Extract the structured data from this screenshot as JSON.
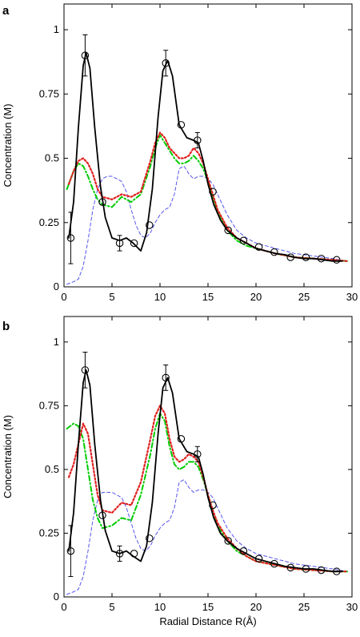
{
  "figure": {
    "xlabel": "Radial Distance R(Å)"
  },
  "chart_data": [
    {
      "type": "line",
      "panel_label": "a",
      "xlabel": "",
      "ylabel": "Concentration (M)",
      "xlim": [
        0,
        30
      ],
      "ylim": [
        0,
        1.1
      ],
      "x_ticks": [
        0,
        5,
        10,
        15,
        20,
        25,
        30
      ],
      "x_tick_labels": [
        "0",
        "5",
        "10",
        "15",
        "20",
        "25",
        "30"
      ],
      "y_ticks": [
        0,
        0.25,
        0.5,
        0.75,
        1
      ],
      "y_tick_labels": [
        "0",
        "0.25",
        "0.5",
        "0.75",
        "1"
      ],
      "grid": false,
      "series": [
        {
          "style": "solid",
          "color": "#000000",
          "x": [
            0.5,
            1.0,
            1.5,
            2.0,
            2.3,
            2.7,
            3.2,
            3.8,
            4.3,
            5.0,
            5.8,
            6.5,
            7.2,
            8.0,
            8.6,
            9.2,
            9.8,
            10.3,
            10.8,
            11.3,
            12.0,
            12.8,
            13.5,
            14.0,
            14.5,
            15.0,
            15.6,
            16.3,
            17.0,
            18.0,
            19.0,
            20.0,
            21.0,
            22.0,
            23.0,
            24.0,
            25.0,
            26.0,
            27.0,
            28.0,
            29.0
          ],
          "y": [
            0.19,
            0.33,
            0.62,
            0.86,
            0.91,
            0.85,
            0.62,
            0.39,
            0.27,
            0.19,
            0.18,
            0.19,
            0.17,
            0.14,
            0.21,
            0.38,
            0.66,
            0.84,
            0.88,
            0.82,
            0.63,
            0.58,
            0.57,
            0.56,
            0.49,
            0.4,
            0.32,
            0.26,
            0.22,
            0.19,
            0.17,
            0.15,
            0.14,
            0.13,
            0.125,
            0.115,
            0.11,
            0.11,
            0.105,
            0.1,
            0.1
          ]
        },
        {
          "style": "dotted",
          "color": "#e02020",
          "x": [
            0.5,
            1.0,
            1.5,
            2.0,
            2.5,
            3.0,
            3.5,
            4.0,
            5.0,
            6.0,
            7.0,
            8.0,
            9.0,
            9.5,
            10.0,
            10.5,
            11.0,
            11.5,
            12.0,
            12.5,
            13.0,
            13.5,
            14.0,
            14.5,
            15.0,
            15.5,
            16.0,
            17.0,
            18.0,
            19.0,
            20.0,
            22.0,
            24.0,
            26.0,
            28.0,
            29.5
          ],
          "y": [
            0.4,
            0.45,
            0.49,
            0.5,
            0.48,
            0.44,
            0.38,
            0.35,
            0.34,
            0.36,
            0.35,
            0.37,
            0.49,
            0.56,
            0.6,
            0.58,
            0.54,
            0.52,
            0.5,
            0.5,
            0.51,
            0.54,
            0.52,
            0.48,
            0.42,
            0.36,
            0.3,
            0.23,
            0.19,
            0.17,
            0.15,
            0.13,
            0.115,
            0.11,
            0.105,
            0.1
          ]
        },
        {
          "style": "dashdot",
          "color": "#00cc00",
          "x": [
            0.3,
            1.0,
            1.5,
            2.0,
            2.5,
            3.0,
            3.5,
            4.0,
            5.0,
            6.0,
            7.0,
            8.0,
            9.0,
            9.5,
            10.0,
            10.5,
            11.0,
            11.5,
            12.0,
            12.5,
            13.0,
            13.5,
            14.0,
            14.5,
            15.0,
            15.5,
            16.0,
            17.0,
            18.0,
            19.0,
            20.0,
            22.0,
            24.0,
            26.0,
            28.0,
            29.5
          ],
          "y": [
            0.38,
            0.45,
            0.48,
            0.47,
            0.43,
            0.38,
            0.34,
            0.32,
            0.31,
            0.35,
            0.33,
            0.36,
            0.47,
            0.54,
            0.59,
            0.56,
            0.53,
            0.5,
            0.48,
            0.48,
            0.49,
            0.51,
            0.49,
            0.46,
            0.41,
            0.35,
            0.29,
            0.22,
            0.18,
            0.16,
            0.15,
            0.13,
            0.115,
            0.11,
            0.105,
            0.1
          ]
        },
        {
          "style": "dashed",
          "color": "#5555ee",
          "x": [
            0.3,
            1.0,
            1.5,
            2.0,
            2.5,
            3.0,
            3.5,
            4.0,
            4.5,
            5.0,
            5.5,
            6.0,
            6.5,
            7.0,
            7.5,
            8.0,
            8.5,
            9.0,
            9.5,
            10.0,
            10.5,
            11.0,
            11.5,
            12.0,
            12.5,
            13.0,
            13.5,
            14.0,
            14.5,
            15.0,
            15.5,
            16.0,
            17.0,
            18.0,
            19.0,
            20.0,
            21.0,
            22.0,
            24.0,
            26.0,
            28.0,
            29.5
          ],
          "y": [
            0.01,
            0.02,
            0.03,
            0.08,
            0.18,
            0.3,
            0.38,
            0.42,
            0.43,
            0.43,
            0.42,
            0.41,
            0.37,
            0.3,
            0.24,
            0.2,
            0.19,
            0.21,
            0.25,
            0.28,
            0.3,
            0.31,
            0.36,
            0.46,
            0.47,
            0.44,
            0.42,
            0.43,
            0.43,
            0.42,
            0.4,
            0.36,
            0.28,
            0.22,
            0.19,
            0.17,
            0.16,
            0.15,
            0.13,
            0.12,
            0.11,
            0.1
          ]
        }
      ],
      "markers": {
        "x": [
          0.7,
          2.2,
          4.0,
          5.8,
          7.3,
          8.9,
          10.6,
          12.2,
          13.9,
          15.5,
          17.1,
          18.7,
          20.3,
          21.9,
          23.6,
          25.2,
          26.8,
          28.4
        ],
        "y": [
          0.19,
          0.9,
          0.33,
          0.17,
          0.17,
          0.24,
          0.87,
          0.63,
          0.57,
          0.37,
          0.22,
          0.18,
          0.155,
          0.135,
          0.115,
          0.115,
          0.11,
          0.105
        ],
        "err": [
          0.1,
          0.08,
          0.0,
          0.03,
          0.0,
          0.0,
          0.05,
          0.0,
          0.03,
          0.0,
          0.0,
          0.0,
          0.0,
          0.0,
          0.0,
          0.0,
          0.0,
          0.0
        ]
      }
    },
    {
      "type": "line",
      "panel_label": "b",
      "xlabel": "Radial Distance R(Å)",
      "ylabel": "Concentration (M)",
      "xlim": [
        0,
        30
      ],
      "ylim": [
        0,
        1.1
      ],
      "x_ticks": [
        0,
        5,
        10,
        15,
        20,
        25,
        30
      ],
      "x_tick_labels": [
        "0",
        "5",
        "10",
        "15",
        "20",
        "25",
        "30"
      ],
      "y_ticks": [
        0,
        0.25,
        0.5,
        0.75,
        1
      ],
      "y_tick_labels": [
        "0",
        "0.25",
        "0.5",
        "0.75",
        "1"
      ],
      "grid": false,
      "series": [
        {
          "style": "solid",
          "color": "#000000",
          "x": [
            0.5,
            1.0,
            1.5,
            2.0,
            2.3,
            2.7,
            3.2,
            3.8,
            4.3,
            5.0,
            5.8,
            6.5,
            7.2,
            8.0,
            8.6,
            9.2,
            9.8,
            10.3,
            10.8,
            11.3,
            12.0,
            12.8,
            13.5,
            14.0,
            14.5,
            15.0,
            15.6,
            16.3,
            17.0,
            18.0,
            19.0,
            20.0,
            21.0,
            22.0,
            23.0,
            24.0,
            25.0,
            26.0,
            27.0,
            28.0,
            29.0
          ],
          "y": [
            0.18,
            0.33,
            0.6,
            0.84,
            0.89,
            0.83,
            0.6,
            0.38,
            0.26,
            0.18,
            0.17,
            0.18,
            0.16,
            0.14,
            0.2,
            0.37,
            0.64,
            0.82,
            0.86,
            0.8,
            0.62,
            0.57,
            0.56,
            0.55,
            0.48,
            0.39,
            0.31,
            0.25,
            0.22,
            0.19,
            0.17,
            0.15,
            0.14,
            0.13,
            0.12,
            0.115,
            0.11,
            0.11,
            0.105,
            0.1,
            0.1
          ]
        },
        {
          "style": "dotted",
          "color": "#e02020",
          "x": [
            0.5,
            1.0,
            1.5,
            2.0,
            2.5,
            3.0,
            3.5,
            4.0,
            5.0,
            6.0,
            7.0,
            8.0,
            9.0,
            9.5,
            10.0,
            10.5,
            11.0,
            11.5,
            12.0,
            12.5,
            13.0,
            13.5,
            14.0,
            14.5,
            15.0,
            15.5,
            16.0,
            17.0,
            18.0,
            19.0,
            20.0,
            22.0,
            24.0,
            26.0,
            28.0,
            29.5
          ],
          "y": [
            0.47,
            0.52,
            0.6,
            0.68,
            0.64,
            0.52,
            0.4,
            0.34,
            0.33,
            0.37,
            0.36,
            0.45,
            0.62,
            0.71,
            0.75,
            0.72,
            0.62,
            0.55,
            0.53,
            0.54,
            0.56,
            0.55,
            0.53,
            0.47,
            0.4,
            0.34,
            0.29,
            0.23,
            0.19,
            0.16,
            0.14,
            0.125,
            0.11,
            0.105,
            0.1,
            0.1
          ]
        },
        {
          "style": "dashdot",
          "color": "#00cc00",
          "x": [
            0.3,
            1.0,
            1.5,
            2.0,
            2.5,
            3.0,
            3.5,
            4.0,
            5.0,
            6.0,
            7.0,
            8.0,
            9.0,
            9.5,
            10.0,
            10.5,
            11.0,
            11.5,
            12.0,
            12.5,
            13.0,
            13.5,
            14.0,
            14.5,
            15.0,
            15.5,
            16.0,
            17.0,
            18.0,
            19.0,
            20.0,
            22.0,
            24.0,
            26.0,
            28.0,
            29.5
          ],
          "y": [
            0.66,
            0.68,
            0.67,
            0.62,
            0.5,
            0.38,
            0.31,
            0.27,
            0.28,
            0.31,
            0.3,
            0.4,
            0.56,
            0.66,
            0.72,
            0.69,
            0.59,
            0.52,
            0.5,
            0.51,
            0.53,
            0.53,
            0.51,
            0.46,
            0.4,
            0.34,
            0.28,
            0.22,
            0.18,
            0.16,
            0.14,
            0.125,
            0.11,
            0.105,
            0.1,
            0.1
          ]
        },
        {
          "style": "dashed",
          "color": "#5555ee",
          "x": [
            0.3,
            1.0,
            1.5,
            2.0,
            2.5,
            3.0,
            3.5,
            4.0,
            4.5,
            5.0,
            5.5,
            6.0,
            6.5,
            7.0,
            7.5,
            8.0,
            8.5,
            9.0,
            9.5,
            10.0,
            10.5,
            11.0,
            11.5,
            12.0,
            12.5,
            13.0,
            13.5,
            14.0,
            14.5,
            15.0,
            15.5,
            16.0,
            17.0,
            18.0,
            19.0,
            20.0,
            21.0,
            22.0,
            24.0,
            26.0,
            28.0,
            29.5
          ],
          "y": [
            0.01,
            0.02,
            0.03,
            0.08,
            0.18,
            0.3,
            0.38,
            0.41,
            0.41,
            0.41,
            0.4,
            0.39,
            0.35,
            0.29,
            0.23,
            0.19,
            0.18,
            0.2,
            0.24,
            0.27,
            0.29,
            0.3,
            0.35,
            0.45,
            0.46,
            0.43,
            0.41,
            0.42,
            0.42,
            0.41,
            0.39,
            0.35,
            0.27,
            0.22,
            0.19,
            0.17,
            0.16,
            0.15,
            0.13,
            0.12,
            0.11,
            0.1
          ]
        }
      ],
      "markers": {
        "x": [
          0.7,
          2.2,
          4.0,
          5.8,
          7.3,
          8.9,
          10.6,
          12.2,
          13.9,
          15.5,
          17.1,
          18.7,
          20.3,
          21.9,
          23.6,
          25.2,
          26.8,
          28.4
        ],
        "y": [
          0.18,
          0.89,
          0.32,
          0.17,
          0.17,
          0.23,
          0.86,
          0.62,
          0.56,
          0.36,
          0.22,
          0.18,
          0.15,
          0.13,
          0.115,
          0.11,
          0.105,
          0.1
        ],
        "err": [
          0.1,
          0.07,
          0.0,
          0.03,
          0.0,
          0.0,
          0.05,
          0.0,
          0.03,
          0.0,
          0.0,
          0.0,
          0.0,
          0.0,
          0.0,
          0.0,
          0.0,
          0.0
        ]
      }
    }
  ]
}
